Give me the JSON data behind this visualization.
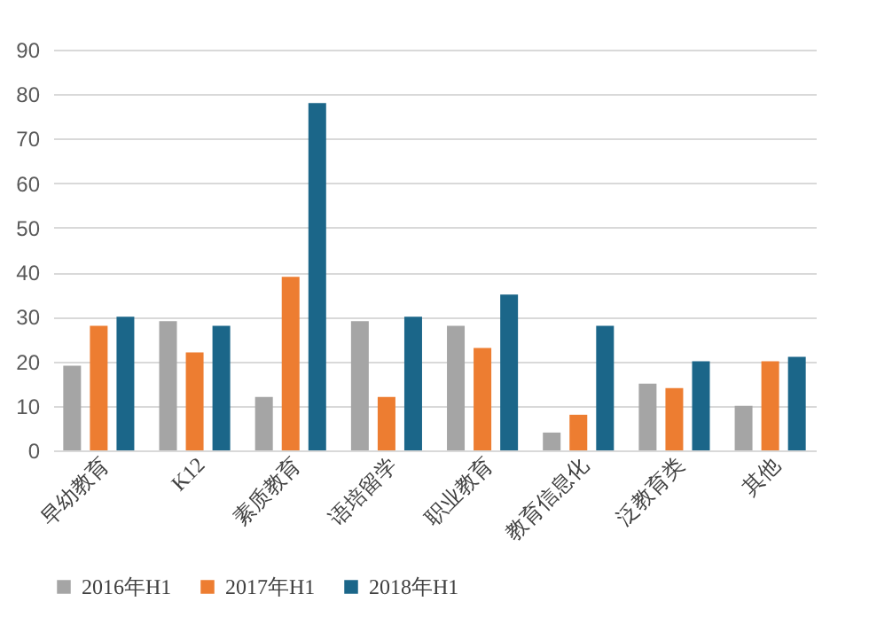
{
  "chart_data": {
    "type": "bar",
    "categories": [
      "早幼教育",
      "K12",
      "素质教育",
      "语培留学",
      "职业教育",
      "教育信息化",
      "泛教育类",
      "其他"
    ],
    "series": [
      {
        "name": "2016年H1",
        "color": "#a5a5a5",
        "values": [
          19,
          29,
          12,
          29,
          28,
          4,
          15,
          10
        ]
      },
      {
        "name": "2017年H1",
        "color": "#ed7d31",
        "values": [
          28,
          22,
          39,
          12,
          23,
          8,
          14,
          20
        ]
      },
      {
        "name": "2018年H1",
        "color": "#1b6689",
        "values": [
          30,
          28,
          78,
          30,
          35,
          28,
          20,
          21
        ]
      }
    ],
    "ylim": [
      0,
      90
    ],
    "yticks": [
      0,
      10,
      20,
      30,
      40,
      50,
      60,
      70,
      80,
      90
    ],
    "grid": "y",
    "legend": "bottom"
  }
}
